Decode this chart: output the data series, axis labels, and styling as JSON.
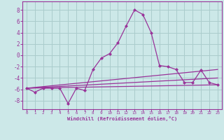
{
  "background_color": "#cce8e8",
  "grid_color": "#aacccc",
  "line_color": "#993399",
  "marker_color": "#993399",
  "xlabel": "Windchill (Refroidissement éolien,°C)",
  "xlabel_color": "#993399",
  "tick_color": "#993399",
  "spine_color": "#993399",
  "xlim": [
    -0.5,
    23.5
  ],
  "ylim": [
    -9.5,
    9.5
  ],
  "yticks": [
    -8,
    -6,
    -4,
    -2,
    0,
    2,
    4,
    6,
    8
  ],
  "xticks": [
    0,
    1,
    2,
    3,
    4,
    5,
    6,
    7,
    8,
    9,
    10,
    11,
    12,
    13,
    14,
    15,
    16,
    17,
    18,
    19,
    20,
    21,
    22,
    23
  ],
  "line1_x": [
    0,
    1,
    2,
    3,
    4,
    5,
    6,
    7,
    8,
    9,
    10,
    11,
    12,
    13,
    14,
    15,
    16,
    17,
    18,
    19,
    20,
    21,
    22,
    23
  ],
  "line1_y": [
    -5.8,
    -6.5,
    -5.8,
    -5.8,
    -5.8,
    -8.5,
    -5.8,
    -6.2,
    -2.5,
    -0.5,
    0.3,
    2.2,
    5.2,
    8.0,
    7.2,
    4.0,
    -1.8,
    -2.0,
    -2.5,
    -4.8,
    -4.8,
    -2.6,
    -4.8,
    -5.2
  ],
  "line2_x": [
    0,
    23
  ],
  "line2_y": [
    -5.8,
    -5.2
  ],
  "line3_x": [
    0,
    23
  ],
  "line3_y": [
    -5.8,
    -4.0
  ],
  "line4_x": [
    0,
    23
  ],
  "line4_y": [
    -5.8,
    -2.5
  ]
}
